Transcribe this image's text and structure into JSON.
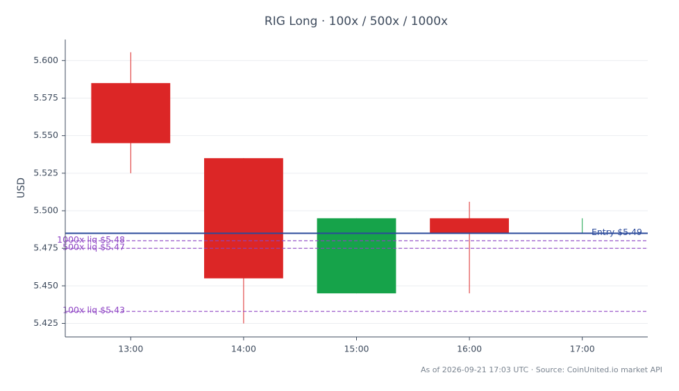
{
  "chart_data": {
    "type": "candlestick",
    "title": "RIG Long · 100x / 500x / 1000x",
    "y_label": "USD",
    "footer": "As of 2026-09-21 17:03 UTC · Source: CoinUnited.io market API",
    "categories": [
      "13:00",
      "14:00",
      "15:00",
      "16:00",
      "17:00"
    ],
    "open": [
      5.585,
      5.535,
      5.445,
      5.495,
      5.485
    ],
    "high": [
      5.6055,
      5.535,
      5.495,
      5.506,
      5.495
    ],
    "low": [
      5.525,
      5.425,
      5.445,
      5.445,
      5.485
    ],
    "close": [
      5.545,
      5.455,
      5.495,
      5.485,
      5.4851
    ],
    "up_color": "#16a34a",
    "down_color": "#dc2626",
    "ylim": [
      5.416,
      5.614
    ],
    "yticks": [
      5.425,
      {
        "value": 5.45,
        "label": "5.450"
      },
      5.475,
      {
        "value": 5.5,
        "label": "5.500"
      },
      5.525,
      {
        "value": 5.55,
        "label": "5.550"
      },
      5.575,
      {
        "value": 5.6,
        "label": "5.600"
      }
    ],
    "grid": true,
    "reference_lines": [
      {
        "label": "Entry $5.49",
        "value": 5.485,
        "color": "#2b4a9b",
        "style": "solid"
      },
      {
        "label": "1000x liq $5.48",
        "value": 5.48,
        "color": "#8e44c4",
        "style": "dashed"
      },
      {
        "label": "500x liq $5.47",
        "value": 5.475,
        "color": "#8e44c4",
        "style": "dashed"
      },
      {
        "label": "100x liq $5.43",
        "value": 5.433,
        "color": "#8e44c4",
        "style": "dashed"
      }
    ]
  }
}
